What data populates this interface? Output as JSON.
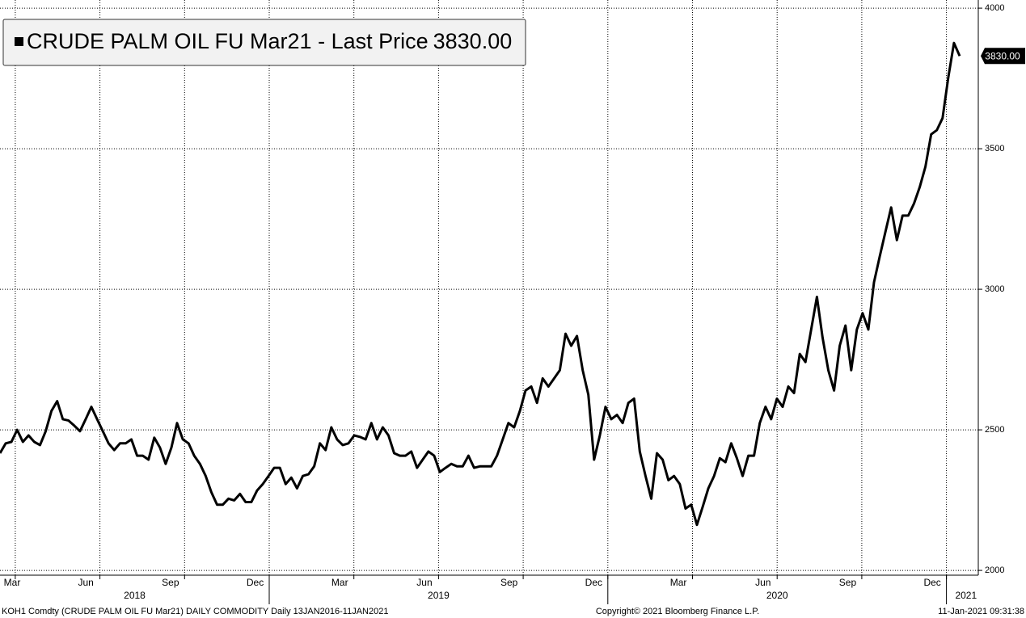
{
  "chart_data": {
    "type": "line",
    "series": [
      {
        "name": "CRUDE PALM OIL FU Mar21 - Last Price",
        "color": "#000000",
        "values": [
          2417,
          2452,
          2457,
          2500,
          2457,
          2480,
          2457,
          2446,
          2495,
          2567,
          2602,
          2538,
          2533,
          2515,
          2495,
          2538,
          2582,
          2538,
          2495,
          2452,
          2428,
          2452,
          2452,
          2466,
          2408,
          2408,
          2394,
          2472,
          2437,
          2379,
          2437,
          2524,
          2466,
          2452,
          2408,
          2379,
          2336,
          2278,
          2234,
          2234,
          2255,
          2249,
          2272,
          2243,
          2243,
          2284,
          2307,
          2336,
          2365,
          2365,
          2307,
          2330,
          2292,
          2336,
          2342,
          2370,
          2452,
          2428,
          2509,
          2466,
          2446,
          2452,
          2480,
          2475,
          2466,
          2524,
          2466,
          2509,
          2480,
          2417,
          2408,
          2408,
          2423,
          2365,
          2394,
          2423,
          2408,
          2350,
          2365,
          2379,
          2370,
          2370,
          2408,
          2365,
          2370,
          2370,
          2370,
          2408,
          2466,
          2524,
          2509,
          2567,
          2640,
          2654,
          2596,
          2683,
          2654,
          2683,
          2712,
          2842,
          2799,
          2834,
          2712,
          2625,
          2394,
          2480,
          2582,
          2538,
          2553,
          2524,
          2596,
          2611,
          2423,
          2336,
          2255,
          2417,
          2394,
          2321,
          2336,
          2307,
          2220,
          2234,
          2162,
          2226,
          2292,
          2336,
          2399,
          2385,
          2452,
          2399,
          2336,
          2408,
          2408,
          2524,
          2582,
          2538,
          2611,
          2582,
          2654,
          2631,
          2770,
          2741,
          2857,
          2973,
          2828,
          2712,
          2640,
          2799,
          2871,
          2712,
          2857,
          2915,
          2857,
          3025,
          3117,
          3204,
          3291,
          3175,
          3262,
          3262,
          3305,
          3363,
          3436,
          3551,
          3566,
          3609,
          3754,
          3876,
          3830
        ],
        "last_value": {
          "value": 3830,
          "label": "3830.00"
        }
      }
    ],
    "ylim": [
      1983,
      4029
    ],
    "yticks": [
      2000,
      2500,
      3000,
      3500,
      4000
    ],
    "xticks": [
      {
        "value": "2018-03",
        "label": "Mar"
      },
      {
        "value": "2018-06",
        "label": "Jun"
      },
      {
        "value": "2018-09",
        "label": "Sep"
      },
      {
        "value": "2018-12",
        "label": "Dec"
      },
      {
        "value": "2019-03",
        "label": "Mar"
      },
      {
        "value": "2019-06",
        "label": "Jun"
      },
      {
        "value": "2019-09",
        "label": "Sep"
      },
      {
        "value": "2019-12",
        "label": "Dec"
      },
      {
        "value": "2020-03",
        "label": "Mar"
      },
      {
        "value": "2020-06",
        "label": "Jun"
      },
      {
        "value": "2020-09",
        "label": "Sep"
      },
      {
        "value": "2020-12",
        "label": "Dec"
      }
    ],
    "years": [
      "2018",
      "2019",
      "2020",
      "2021"
    ],
    "grid": true,
    "legend": "upper left",
    "footer": {
      "left": "KOH1 Comdty (CRUDE PALM OIL FU Mar21) DAILY COMMODITY  Daily 13JAN2016-11JAN2021",
      "center": "Copyright© 2021 Bloomberg Finance L.P.",
      "right": "11-Jan-2021 09:31:38"
    }
  }
}
